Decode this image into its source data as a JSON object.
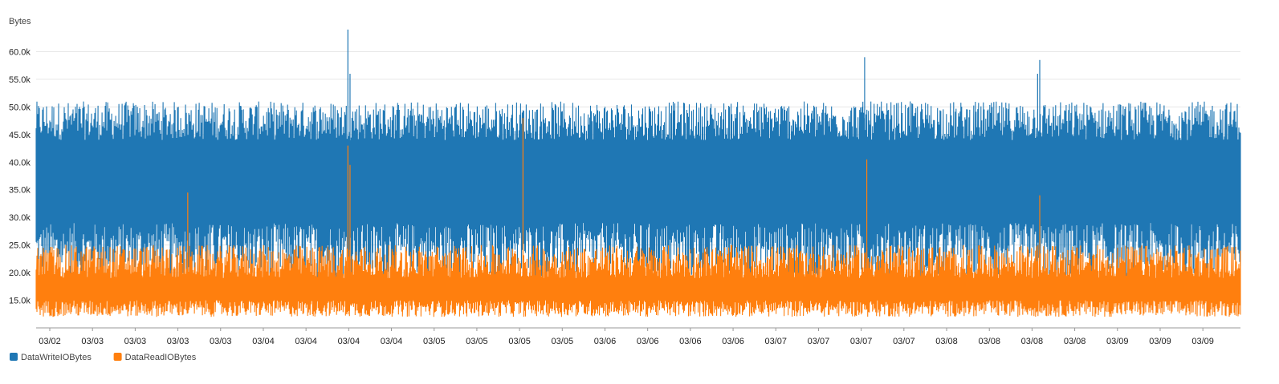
{
  "chart_data": {
    "type": "line",
    "title": "",
    "xlabel": "",
    "ylabel": "Bytes",
    "ylim": [
      10000,
      65000
    ],
    "yticks": [
      "15.0k",
      "20.0k",
      "25.0k",
      "30.0k",
      "35.0k",
      "40.0k",
      "45.0k",
      "50.0k",
      "55.0k",
      "60.0k"
    ],
    "ytick_values": [
      15000,
      20000,
      25000,
      30000,
      35000,
      40000,
      45000,
      50000,
      55000,
      60000
    ],
    "xlim": [
      "03/02",
      "03/09"
    ],
    "xticks": [
      "03/02",
      "03/03",
      "03/03",
      "03/03",
      "03/03",
      "03/04",
      "03/04",
      "03/04",
      "03/04",
      "03/05",
      "03/05",
      "03/05",
      "03/05",
      "03/06",
      "03/06",
      "03/06",
      "03/06",
      "03/07",
      "03/07",
      "03/07",
      "03/07",
      "03/08",
      "03/08",
      "03/08",
      "03/08",
      "03/09",
      "03/09",
      "03/09"
    ],
    "grid": true,
    "legend_position": "bottom-left",
    "series": [
      {
        "name": "DataWriteIOBytes",
        "color": "#1f77b4",
        "low_range": [
          19000,
          29000
        ],
        "high_range": [
          44000,
          51000
        ],
        "peaks": [
          {
            "at": "03/04",
            "value": 64000
          },
          {
            "at": "03/04",
            "value": 56000
          },
          {
            "at": "03/07",
            "value": 59000
          },
          {
            "at": "03/08",
            "value": 56000
          },
          {
            "at": "03/08",
            "value": 58500
          }
        ]
      },
      {
        "name": "DataReadIOBytes",
        "color": "#ff7f0e",
        "low_range": [
          12000,
          15000
        ],
        "high_range": [
          19000,
          25000
        ],
        "peaks": [
          {
            "at": "03/04",
            "value": 43000
          },
          {
            "at": "03/04",
            "value": 39500
          },
          {
            "at": "03/05",
            "value": 48000
          },
          {
            "at": "03/07",
            "value": 40500
          },
          {
            "at": "03/08",
            "value": 34000
          },
          {
            "at": "03/03",
            "value": 34500
          }
        ]
      }
    ]
  }
}
